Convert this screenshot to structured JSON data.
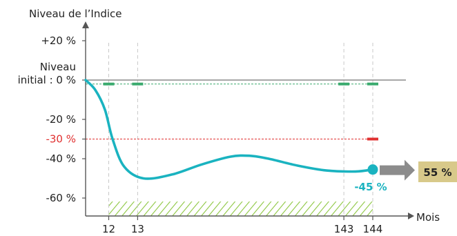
{
  "chart_data": {
    "type": "line",
    "ylabel": "Niveau de l’Indice",
    "xlabel": "Mois",
    "ylim": [
      -66,
      28
    ],
    "xlim": [
      0,
      160
    ],
    "y_ticks": [
      {
        "value": 20,
        "label": "+20 %"
      },
      {
        "value": 0,
        "label": "initial : 0 %",
        "label_above": "Niveau"
      },
      {
        "value": -20,
        "label": "-20 %"
      },
      {
        "value": -30,
        "label": "-30 %",
        "highlight": true
      },
      {
        "value": -40,
        "label": "-40 %"
      },
      {
        "value": -60,
        "label": "-60 %"
      }
    ],
    "x_ticks": [
      {
        "value": 12,
        "label": "12"
      },
      {
        "value": 27,
        "label": "13"
      },
      {
        "value": 134,
        "label": "143"
      },
      {
        "value": 149,
        "label": "144"
      }
    ],
    "series": [
      {
        "points": [
          [
            0,
            0
          ],
          [
            5,
            -5
          ],
          [
            10,
            -15
          ],
          [
            14,
            -30
          ],
          [
            20,
            -44
          ],
          [
            30,
            -50
          ],
          [
            45,
            -48
          ],
          [
            60,
            -43
          ],
          [
            75,
            -39
          ],
          [
            85,
            -38.5
          ],
          [
            95,
            -40
          ],
          [
            110,
            -43.5
          ],
          [
            125,
            -46
          ],
          [
            140,
            -46.5
          ],
          [
            149,
            -45.5
          ]
        ],
        "end_label": "-45 %"
      }
    ],
    "reference_lines": [
      {
        "value": -2,
        "style": "dashed",
        "color": "#3aaa6e",
        "markers_at": [
          12,
          27,
          134,
          149
        ]
      },
      {
        "value": -30,
        "style": "dashed",
        "color": "#e03030",
        "markers_at": [
          149
        ]
      }
    ],
    "hatched_band": {
      "x_from": 12,
      "x_to": 149
    },
    "result_box": {
      "label": "55 %"
    },
    "colors": {
      "curve": "#1ab3c0",
      "barrier_green": "#3aaa6e",
      "barrier_red": "#e03030",
      "hatch": "#8cc63f",
      "arrow": "#8c8c8c",
      "result_box": "#d8c98a",
      "axis": "#555555",
      "highlight_text": "#e03030"
    }
  }
}
